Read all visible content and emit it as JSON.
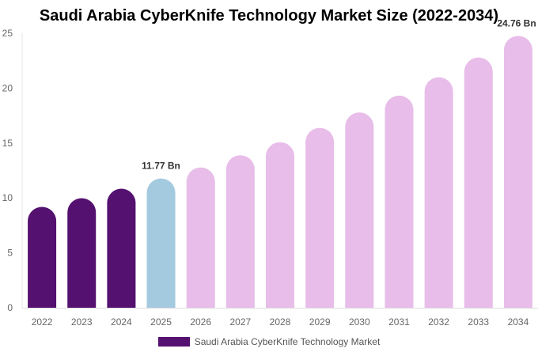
{
  "chart_data": {
    "type": "bar",
    "title": "Saudi Arabia CyberKnife Technology Market Size (2022-2034)",
    "categories": [
      "2022",
      "2023",
      "2024",
      "2025",
      "2026",
      "2027",
      "2028",
      "2029",
      "2030",
      "2031",
      "2032",
      "2033",
      "2034"
    ],
    "series": [
      {
        "name": "Saudi Arabia CyberKnife Technology Market",
        "values": [
          9.19,
          9.98,
          10.84,
          11.77,
          12.78,
          13.89,
          15.08,
          16.38,
          17.79,
          19.32,
          20.99,
          22.79,
          24.76
        ]
      }
    ],
    "data_labels": {
      "3": "11.77 Bn",
      "12": "24.76 Bn"
    },
    "ylim": [
      0,
      25
    ],
    "yticks": [
      0,
      5,
      10,
      15,
      20,
      25
    ],
    "grid": false,
    "legend_position": "bottom",
    "colors": {
      "historical": "#541170",
      "current": "#a3cadf",
      "forecast": "#e8bde9",
      "legend": "#541170"
    }
  }
}
